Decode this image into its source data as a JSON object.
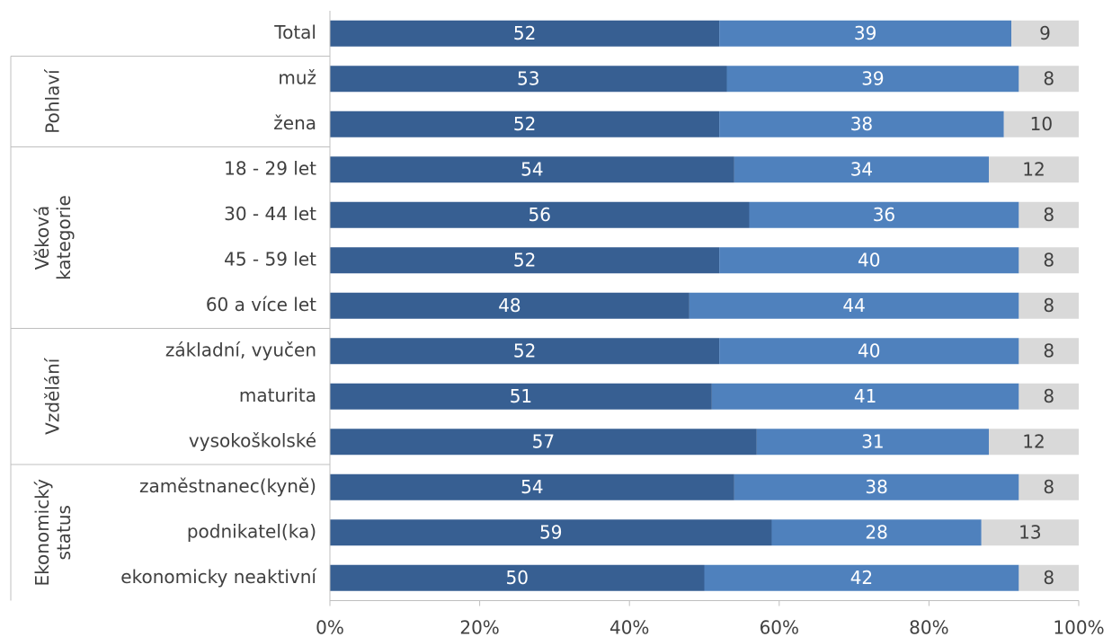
{
  "chart_data": {
    "type": "stacked-bar-horizontal",
    "categories": [
      "Total",
      "muž",
      "žena",
      "18 - 29 let",
      "30 - 44 let",
      "45 - 59 let",
      "60 a více let",
      "základní, vyučen",
      "maturita",
      "vysokoškolské",
      "zaměstnanec(kyně)",
      "podnikatel(ka)",
      "ekonomicky neaktivní"
    ],
    "group_labels": [
      "Pohlaví",
      "Věková kategorie",
      "Vzdělání",
      "Ekonomický status"
    ],
    "series": [
      {
        "color": "#375f92",
        "values": [
          52,
          53,
          52,
          54,
          56,
          52,
          48,
          52,
          51,
          57,
          54,
          59,
          50
        ]
      },
      {
        "color": "#4f81bd",
        "values": [
          39,
          39,
          38,
          34,
          36,
          40,
          44,
          40,
          41,
          31,
          38,
          28,
          42
        ]
      },
      {
        "color": "#d9d9d9",
        "values": [
          9,
          8,
          10,
          12,
          8,
          8,
          8,
          8,
          8,
          12,
          8,
          13,
          8
        ]
      }
    ],
    "xlim": [
      0,
      100
    ],
    "xticks": [
      {
        "value": 0,
        "label": "0%"
      },
      {
        "value": 20,
        "label": "20%"
      },
      {
        "value": 40,
        "label": "40%"
      },
      {
        "value": 60,
        "label": "60%"
      },
      {
        "value": 80,
        "label": "80%"
      },
      {
        "value": 100,
        "label": "100%"
      }
    ]
  }
}
